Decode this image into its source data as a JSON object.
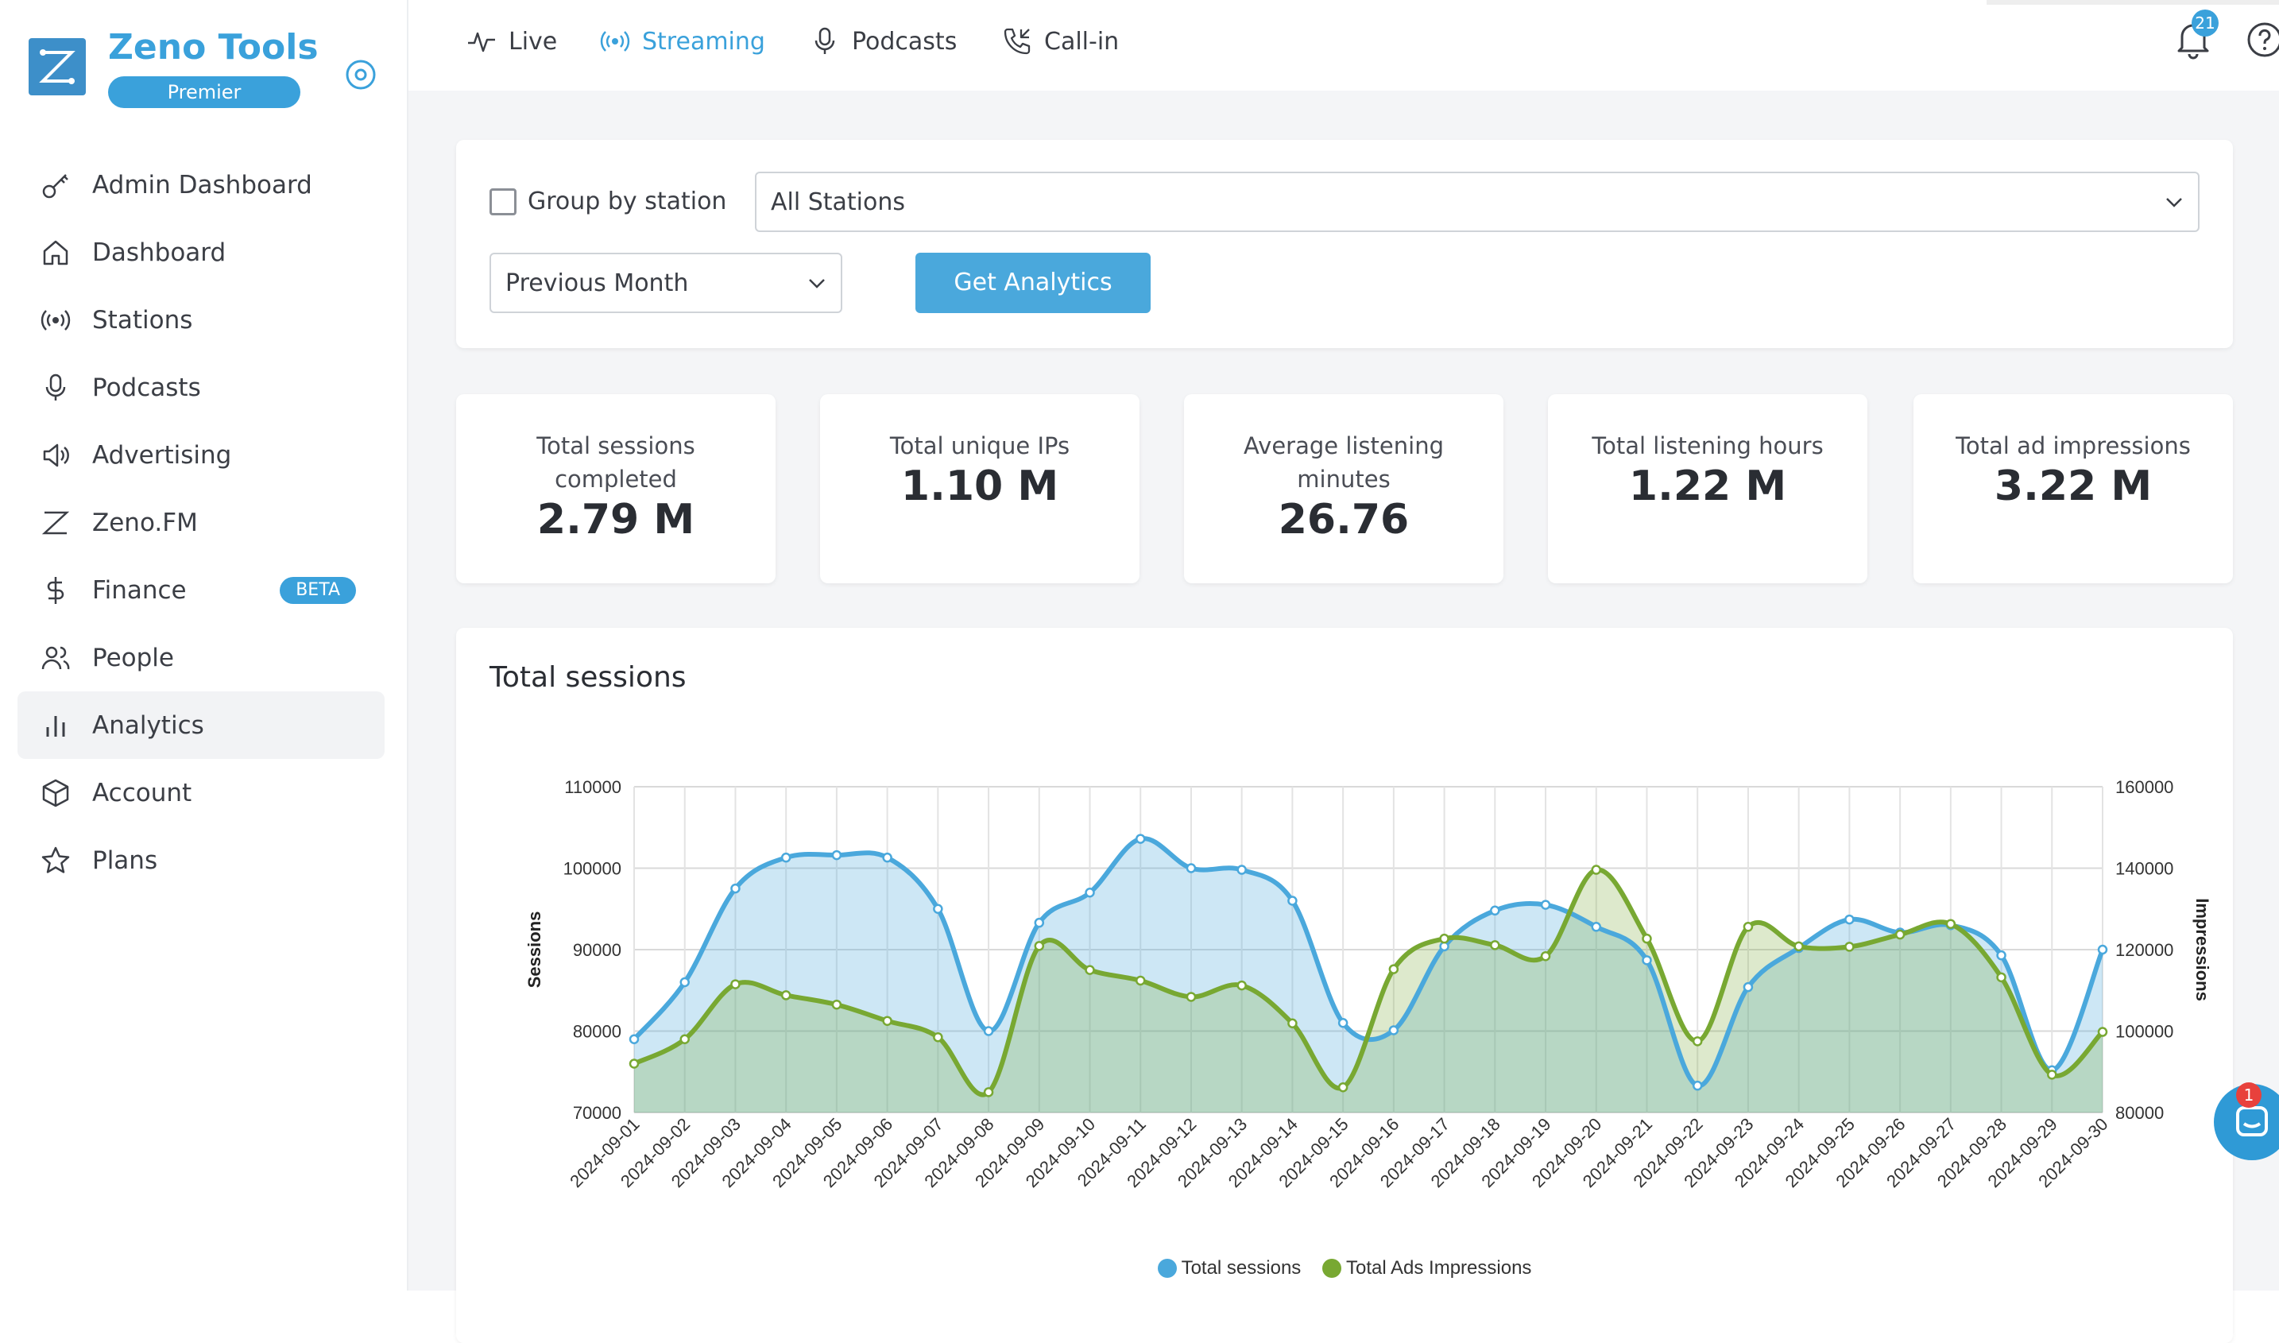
{
  "brand": {
    "name": "Zeno Tools",
    "tier": "Premier"
  },
  "sidebar": {
    "items": [
      {
        "label": "Admin Dashboard",
        "icon": "key-icon"
      },
      {
        "label": "Dashboard",
        "icon": "home-icon"
      },
      {
        "label": "Stations",
        "icon": "broadcast-icon"
      },
      {
        "label": "Podcasts",
        "icon": "microphone-icon"
      },
      {
        "label": "Advertising",
        "icon": "speaker-icon"
      },
      {
        "label": "Zeno.FM",
        "icon": "zeno-icon"
      },
      {
        "label": "Finance",
        "icon": "dollar-icon",
        "badge": "BETA"
      },
      {
        "label": "People",
        "icon": "people-icon"
      },
      {
        "label": "Analytics",
        "icon": "bar-chart-icon",
        "active": true
      },
      {
        "label": "Account",
        "icon": "cube-icon"
      },
      {
        "label": "Plans",
        "icon": "star-icon"
      }
    ]
  },
  "topbar": {
    "tabs": [
      {
        "label": "Live",
        "icon": "pulse-icon"
      },
      {
        "label": "Streaming",
        "icon": "broadcast-icon",
        "active": true
      },
      {
        "label": "Podcasts",
        "icon": "microphone-icon"
      },
      {
        "label": "Call-in",
        "icon": "phone-icon"
      }
    ],
    "notifications_count": "21"
  },
  "filters": {
    "group_by_label": "Group by station",
    "group_by_checked": false,
    "stations_value": "All Stations",
    "period_value": "Previous Month",
    "submit_label": "Get Analytics"
  },
  "stats": [
    {
      "label": "Total sessions completed",
      "value": "2.79 M"
    },
    {
      "label": "Total unique IPs",
      "value": "1.10 M"
    },
    {
      "label": "Average listening minutes",
      "value": "26.76"
    },
    {
      "label": "Total listening hours",
      "value": "1.22 M"
    },
    {
      "label": "Total ad impressions",
      "value": "3.22 M"
    }
  ],
  "chart_card_title": "Total sessions",
  "chart_data": {
    "type": "area",
    "ylabel": "Sessions",
    "y2label": "Impressions",
    "ylim": [
      70000,
      110000
    ],
    "y2lim": [
      80000,
      160000
    ],
    "yticks": [
      "110000",
      "100000",
      "90000",
      "80000",
      "70000"
    ],
    "y2ticks": [
      "160000",
      "140000",
      "120000",
      "100000",
      "80000"
    ],
    "grid": true,
    "legend_position": "bottom",
    "categories": [
      "2024-09-01",
      "2024-09-02",
      "2024-09-03",
      "2024-09-04",
      "2024-09-05",
      "2024-09-06",
      "2024-09-07",
      "2024-09-08",
      "2024-09-09",
      "2024-09-10",
      "2024-09-11",
      "2024-09-12",
      "2024-09-13",
      "2024-09-14",
      "2024-09-15",
      "2024-09-16",
      "2024-09-17",
      "2024-09-18",
      "2024-09-19",
      "2024-09-20",
      "2024-09-21",
      "2024-09-22",
      "2024-09-23",
      "2024-09-24",
      "2024-09-25",
      "2024-09-26",
      "2024-09-27",
      "2024-09-28",
      "2024-09-29",
      "2024-09-30"
    ],
    "series": [
      {
        "name": "Total sessions",
        "color": "#4aa8dc",
        "axis": "left",
        "values": [
          79000,
          86000,
          97500,
          101300,
          101600,
          101300,
          95000,
          80000,
          93300,
          97000,
          103600,
          100000,
          99800,
          96000,
          81000,
          80100,
          90400,
          94800,
          95500,
          92800,
          88700,
          73300,
          85400,
          90200,
          93700,
          92100,
          93000,
          89300,
          75200,
          90000
        ]
      },
      {
        "name": "Total Ads Impressions",
        "color": "#78a832",
        "axis": "right",
        "values": [
          92000,
          98000,
          111500,
          108800,
          106500,
          102500,
          98500,
          85000,
          120900,
          115000,
          112400,
          108400,
          111200,
          101900,
          86200,
          115200,
          122700,
          121100,
          118400,
          139600,
          122700,
          97500,
          125600,
          120800,
          120700,
          123700,
          126300,
          113200,
          89300,
          99800
        ]
      }
    ]
  }
}
